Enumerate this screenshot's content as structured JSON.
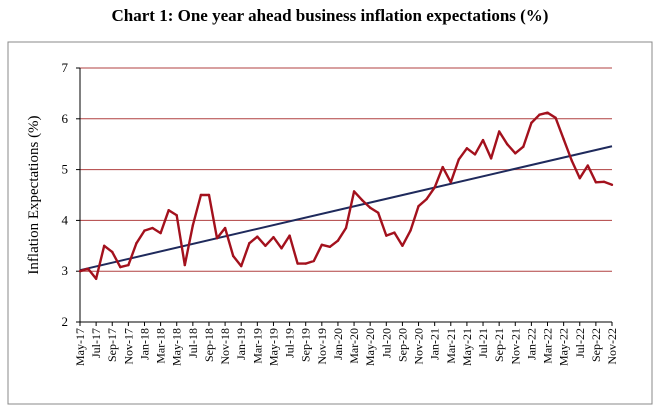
{
  "chart_data": {
    "type": "line",
    "title": "Chart 1: One year ahead business inflation expectations (%)",
    "ylabel": "Inflation Expectations (%)",
    "xlabel": "",
    "ylim": [
      2,
      7
    ],
    "yticks": [
      2,
      3,
      4,
      5,
      6,
      7
    ],
    "grid": "horizontal",
    "colors": {
      "series": "#a3111d",
      "trend": "#1f2a5c",
      "grid": "#b04040",
      "frame": "#888888"
    },
    "x": [
      "May-17",
      "Jun-17",
      "Jul-17",
      "Aug-17",
      "Sep-17",
      "Oct-17",
      "Nov-17",
      "Dec-17",
      "Jan-18",
      "Feb-18",
      "Mar-18",
      "Apr-18",
      "May-18",
      "Jun-18",
      "Jul-18",
      "Aug-18",
      "Sep-18",
      "Oct-18",
      "Nov-18",
      "Dec-18",
      "Jan-19",
      "Feb-19",
      "Mar-19",
      "Apr-19",
      "May-19",
      "Jun-19",
      "Jul-19",
      "Aug-19",
      "Sep-19",
      "Oct-19",
      "Nov-19",
      "Dec-19",
      "Jan-20",
      "Feb-20",
      "Mar-20",
      "Apr-20",
      "May-20",
      "Jun-20",
      "Jul-20",
      "Aug-20",
      "Sep-20",
      "Oct-20",
      "Nov-20",
      "Dec-20",
      "Jan-21",
      "Feb-21",
      "Mar-21",
      "Apr-21",
      "May-21",
      "Jun-21",
      "Jul-21",
      "Aug-21",
      "Sep-21",
      "Oct-21",
      "Nov-21",
      "Dec-21",
      "Jan-22",
      "Feb-22",
      "Mar-22",
      "Apr-22",
      "May-22",
      "Jun-22",
      "Jul-22",
      "Aug-22",
      "Sep-22",
      "Oct-22",
      "Nov-22"
    ],
    "tick_labels": [
      "May-17",
      "Jul-17",
      "Sep-17",
      "Nov-17",
      "Jan-18",
      "Mar-18",
      "May-18",
      "Jul-18",
      "Sep-18",
      "Nov-18",
      "Jan-19",
      "Mar-19",
      "May-19",
      "Jul-19",
      "Sep-19",
      "Nov-19",
      "Jan-20",
      "Mar-20",
      "May-20",
      "Jul-20",
      "Sep-20",
      "Nov-20",
      "Jan-21",
      "Mar-21",
      "May-21",
      "Jul-21",
      "Sep-21",
      "Nov-21",
      "Jan-22",
      "Mar-22",
      "May-22",
      "Jul-22",
      "Sep-22",
      "Nov-22"
    ],
    "series": [
      {
        "values": [
          3.0,
          3.05,
          2.85,
          3.5,
          3.38,
          3.08,
          3.12,
          3.55,
          3.8,
          3.85,
          3.75,
          4.2,
          4.1,
          3.12,
          3.9,
          4.5,
          4.5,
          3.65,
          3.85,
          3.3,
          3.1,
          3.55,
          3.68,
          3.5,
          3.67,
          3.45,
          3.7,
          3.15,
          3.15,
          3.2,
          3.52,
          3.48,
          3.6,
          3.85,
          4.57,
          4.4,
          4.25,
          4.15,
          3.7,
          3.76,
          3.5,
          3.8,
          4.28,
          4.42,
          4.65,
          5.05,
          4.75,
          5.2,
          5.42,
          5.3,
          5.58,
          5.22,
          5.75,
          5.5,
          5.32,
          5.45,
          5.92,
          6.08,
          6.12,
          6.02,
          5.6,
          5.18,
          4.83,
          5.08,
          4.75,
          4.76,
          4.7
        ]
      }
    ],
    "trendline": {
      "start": 3.02,
      "end": 5.46
    }
  }
}
